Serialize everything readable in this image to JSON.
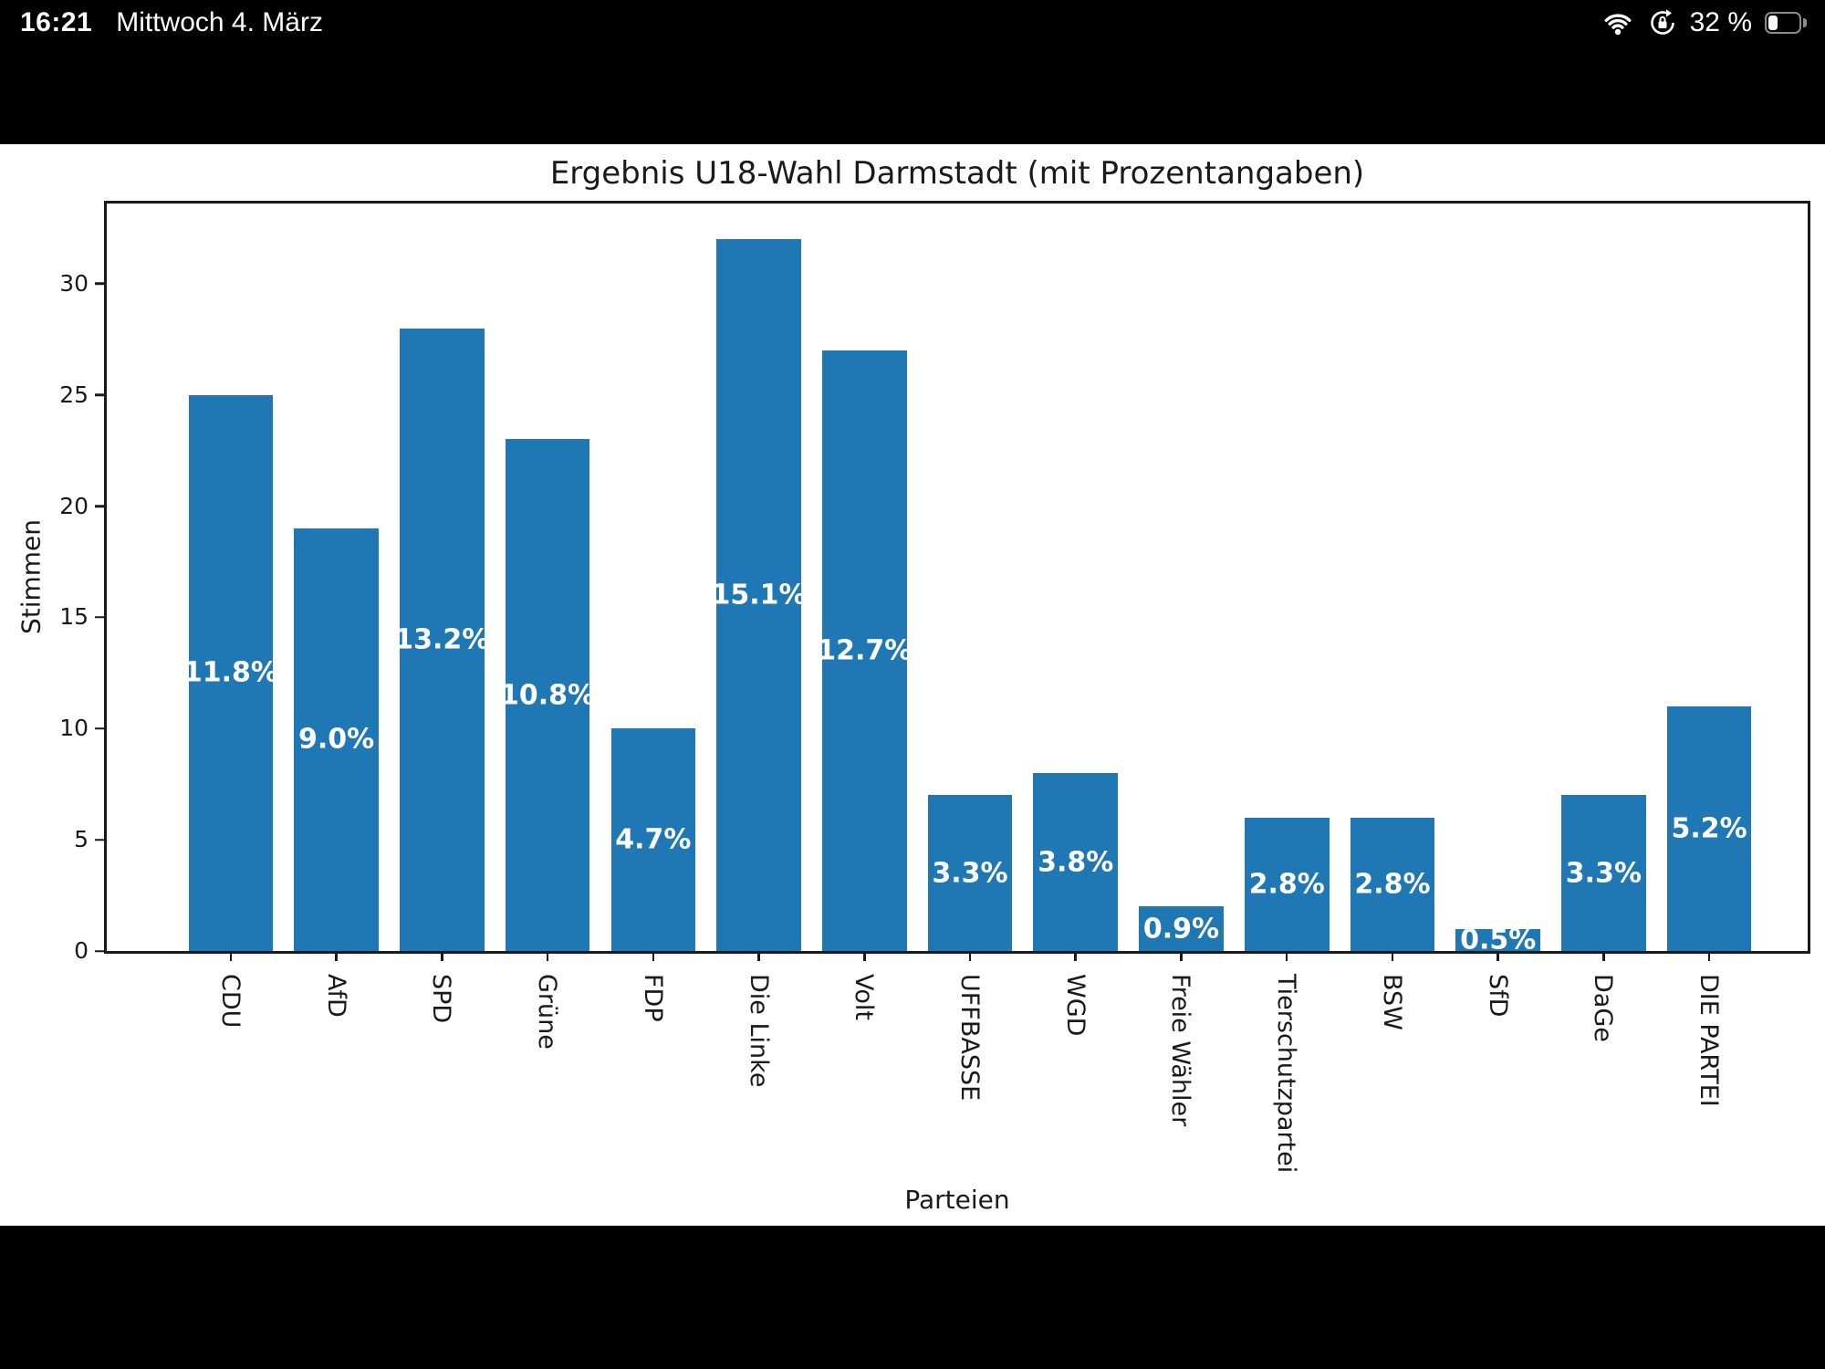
{
  "status_bar": {
    "time": "16:21",
    "date": "Mittwoch 4. März",
    "battery_percent": "32 %",
    "battery_level": 0.32,
    "icons": [
      "wifi-icon",
      "orientation-lock-icon",
      "battery-icon"
    ]
  },
  "chart_data": {
    "type": "bar",
    "title": "Ergebnis U18-Wahl Darmstadt (mit Prozentangaben)",
    "xlabel": "Parteien",
    "ylabel": "Stimmen",
    "categories": [
      "CDU",
      "AfD",
      "SPD",
      "Grüne",
      "FDP",
      "Die Linke",
      "Volt",
      "UFFBASSE",
      "WGD",
      "Freie Wähler",
      "Tierschutzpartei",
      "BSW",
      "SfD",
      "DaGe",
      "DIE PARTEI"
    ],
    "values": [
      25,
      19,
      28,
      23,
      10,
      32,
      27,
      7,
      8,
      2,
      6,
      6,
      1,
      7,
      11
    ],
    "bar_labels": [
      "11.8%",
      "9.0%",
      "13.2%",
      "10.8%",
      "4.7%",
      "15.1%",
      "12.7%",
      "3.3%",
      "3.8%",
      "0.9%",
      "2.8%",
      "2.8%",
      "0.5%",
      "3.3%",
      "5.2%"
    ],
    "yticks": [
      0,
      5,
      10,
      15,
      20,
      25,
      30
    ],
    "ylim": [
      0,
      33.6
    ],
    "bar_color": "#1f77b4",
    "grid": false,
    "legend": null,
    "xlabel_rotation_deg": 90
  }
}
